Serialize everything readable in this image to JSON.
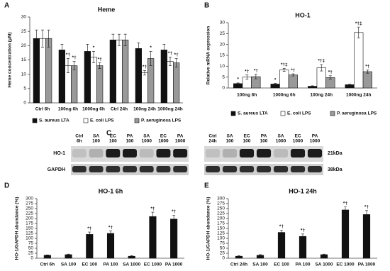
{
  "chart_data": [
    {
      "type": "bar",
      "panel": "A",
      "title": "Heme",
      "y_label": "Heme concentration (μM)",
      "categories": [
        "Ctrl 6h",
        "100ng 6h",
        "1000ng 6h",
        "Ctrl 24h",
        "100ng 24h",
        "1000ng 24h"
      ],
      "series": [
        {
          "name": "S. aureus LTA",
          "color": "#111111",
          "values": [
            22.5,
            18.5,
            18,
            22,
            19,
            18.5
          ],
          "errors": [
            3,
            2,
            2.5,
            2,
            2,
            2
          ],
          "annotations": [
            null,
            null,
            null,
            null,
            null,
            null
          ]
        },
        {
          "name": "E. coli LPS",
          "color": "#ffffff",
          "values": [
            22.5,
            13,
            16,
            22,
            10.5,
            14.5
          ],
          "errors": [
            3,
            2.5,
            2,
            2,
            0.8,
            1.5
          ],
          "annotations": [
            null,
            "*†",
            "*",
            null,
            "*†",
            "*†"
          ]
        },
        {
          "name": "P. aeruginosa LPS",
          "color": "#999999",
          "values": [
            22.5,
            13,
            13,
            22,
            15.5,
            14
          ],
          "errors": [
            3,
            1.5,
            1,
            2,
            2.5,
            1.5
          ],
          "annotations": [
            null,
            "*†",
            "*†",
            null,
            "*",
            "*†"
          ]
        }
      ],
      "ylim": [
        0,
        30
      ],
      "yticks": [
        0,
        5,
        10,
        15,
        20,
        25,
        30
      ],
      "grid": false,
      "legend": "bottom"
    },
    {
      "type": "bar",
      "panel": "B",
      "title": "HO-1",
      "y_label": "Relative mRNA expression",
      "categories": [
        "100ng 6h",
        "1000ng 6h",
        "100ng 24h",
        "1000ng 24h"
      ],
      "series": [
        {
          "name": "S. aureus LTA",
          "color": "#111111",
          "values": [
            2,
            1.8,
            0.8,
            1.5
          ],
          "errors": [
            0.3,
            0.3,
            0.2,
            0.2
          ],
          "annotations": [
            "*",
            "*",
            null,
            null
          ]
        },
        {
          "name": "E. coli LPS",
          "color": "#ffffff",
          "values": [
            5,
            8.3,
            9.3,
            25.5
          ],
          "errors": [
            1,
            0.7,
            1.5,
            2.5
          ],
          "annotations": [
            "*†",
            "*†‡",
            "*†‡",
            "*†‡"
          ]
        },
        {
          "name": "P. aeruginosa LPS",
          "color": "#999999",
          "values": [
            5.2,
            6,
            4.8,
            7.5
          ],
          "errors": [
            1,
            0.5,
            0.8,
            0.7
          ],
          "annotations": [
            "*†",
            "*†",
            "*†",
            "*†"
          ]
        }
      ],
      "ylim": [
        0,
        30
      ],
      "yticks": [
        0,
        5,
        10,
        15,
        20,
        25,
        30
      ],
      "grid": false,
      "legend": "bottom"
    },
    {
      "type": "bar",
      "panel": "D",
      "title": "HO-1 6h",
      "y_label": "HO-1/GAPDH abundance (%)",
      "categories": [
        "Ctrl 6h",
        "SA 100",
        "EC 100",
        "PA 100",
        "SA 1000",
        "EC 1000",
        "PA 1000"
      ],
      "values": [
        15,
        18,
        120,
        125,
        10,
        210,
        197
      ],
      "errors": [
        2,
        3,
        12,
        12,
        3,
        22,
        20
      ],
      "annotations": [
        null,
        null,
        "*†",
        "*†",
        null,
        "*†",
        "*†"
      ],
      "color": "#111111",
      "ylim": [
        0,
        300
      ],
      "yticks": [
        0,
        25,
        50,
        75,
        100,
        125,
        150,
        175,
        200,
        225,
        250,
        275,
        300
      ],
      "grid": false
    },
    {
      "type": "bar",
      "panel": "E",
      "title": "HO-1 24h",
      "y_label": "HO-1/GAPDH abundance (%)",
      "categories": [
        "Ctrl 24h",
        "SA 100",
        "EC 100",
        "PA 100",
        "SA 1000",
        "EC 1000",
        "PA 1000"
      ],
      "values": [
        10,
        15,
        130,
        110,
        18,
        243,
        220
      ],
      "errors": [
        3,
        3,
        12,
        12,
        3,
        15,
        20
      ],
      "annotations": [
        null,
        null,
        "*†",
        "*†",
        null,
        "*†",
        "*†"
      ],
      "color": "#111111",
      "ylim": [
        0,
        300
      ],
      "yticks": [
        0,
        25,
        50,
        75,
        100,
        125,
        150,
        175,
        200,
        225,
        250,
        275,
        300
      ],
      "grid": false
    }
  ],
  "blot": {
    "panel": "C",
    "lanes_left": [
      [
        "Ctrl",
        "6h"
      ],
      [
        "SA",
        "100"
      ],
      [
        "EC",
        "100"
      ],
      [
        "PA",
        "100"
      ],
      [
        "SA",
        "1000"
      ],
      [
        "EC",
        "1000"
      ],
      [
        "PA",
        "1000"
      ]
    ],
    "lanes_right": [
      [
        "Ctrl",
        "24h"
      ],
      [
        "SA",
        "100"
      ],
      [
        "EC",
        "100"
      ],
      [
        "PA",
        "100"
      ],
      [
        "SA",
        "1000"
      ],
      [
        "EC",
        "1000"
      ],
      [
        "PA",
        "1000"
      ]
    ],
    "rows": [
      "HO-1",
      "GAPDH"
    ],
    "sizes": [
      "21kDa",
      "38kDa"
    ]
  }
}
